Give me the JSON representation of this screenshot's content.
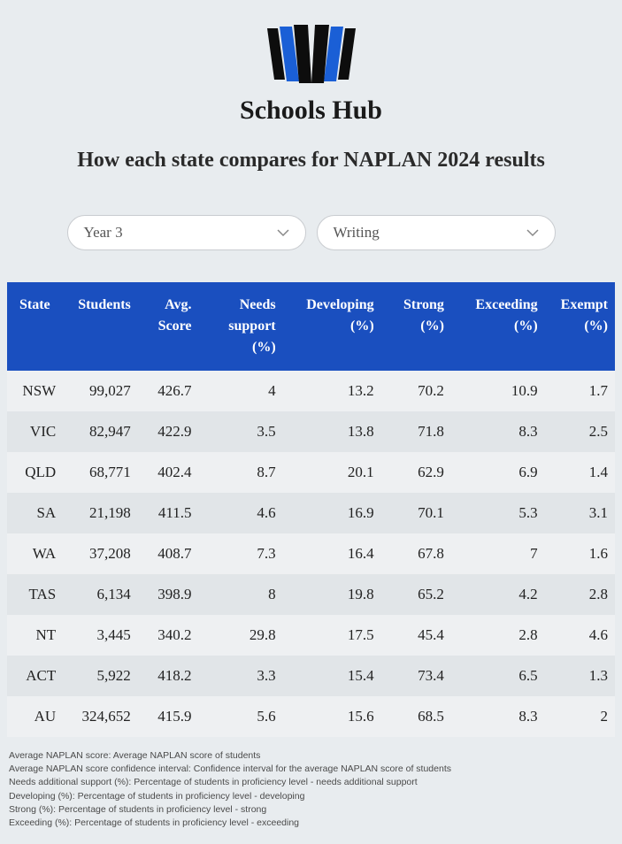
{
  "brand": {
    "title": "Schools Hub"
  },
  "heading": "How each state compares for NAPLAN 2024 results",
  "filters": {
    "year": {
      "label": "Year 3"
    },
    "subject": {
      "label": "Writing"
    }
  },
  "logo_colors": {
    "black": "#0d0d0d",
    "blue": "#1a5fd6"
  },
  "table": {
    "header_bg": "#1a4fbf",
    "header_color": "#ffffff",
    "row_odd_bg": "#eef0f2",
    "row_even_bg": "#e1e5e8",
    "columns": [
      "State",
      "Students",
      "Avg. Score",
      "Needs support (%)",
      "Developing (%)",
      "Strong (%)",
      "Exceeding (%)",
      "Exempt (%)"
    ],
    "column_widths": [
      "55px",
      "80px",
      "65px",
      "90px",
      "105px",
      "75px",
      "100px",
      "75px"
    ],
    "rows": [
      {
        "c": [
          "NSW",
          "99,027",
          "426.7",
          "4",
          "13.2",
          "70.2",
          "10.9",
          "1.7"
        ]
      },
      {
        "c": [
          "VIC",
          "82,947",
          "422.9",
          "3.5",
          "13.8",
          "71.8",
          "8.3",
          "2.5"
        ]
      },
      {
        "c": [
          "QLD",
          "68,771",
          "402.4",
          "8.7",
          "20.1",
          "62.9",
          "6.9",
          "1.4"
        ]
      },
      {
        "c": [
          "SA",
          "21,198",
          "411.5",
          "4.6",
          "16.9",
          "70.1",
          "5.3",
          "3.1"
        ]
      },
      {
        "c": [
          "WA",
          "37,208",
          "408.7",
          "7.3",
          "16.4",
          "67.8",
          "7",
          "1.6"
        ]
      },
      {
        "c": [
          "TAS",
          "6,134",
          "398.9",
          "8",
          "19.8",
          "65.2",
          "4.2",
          "2.8"
        ]
      },
      {
        "c": [
          "NT",
          "3,445",
          "340.2",
          "29.8",
          "17.5",
          "45.4",
          "2.8",
          "4.6"
        ]
      },
      {
        "c": [
          "ACT",
          "5,922",
          "418.2",
          "3.3",
          "15.4",
          "73.4",
          "6.5",
          "1.3"
        ]
      },
      {
        "c": [
          "AU",
          "324,652",
          "415.9",
          "5.6",
          "15.6",
          "68.5",
          "8.3",
          "2"
        ]
      }
    ]
  },
  "footnotes": [
    "Average NAPLAN score: Average NAPLAN score of students",
    "Average NAPLAN score confidence interval: Confidence interval for the average NAPLAN score of students",
    "Needs additional support (%): Percentage of students in proficiency level - needs additional support",
    "Developing (%): Percentage of students in proficiency level - developing",
    "Strong (%): Percentage of students in proficiency level - strong",
    "Exceeding (%): Percentage of students in proficiency level - exceeding"
  ]
}
